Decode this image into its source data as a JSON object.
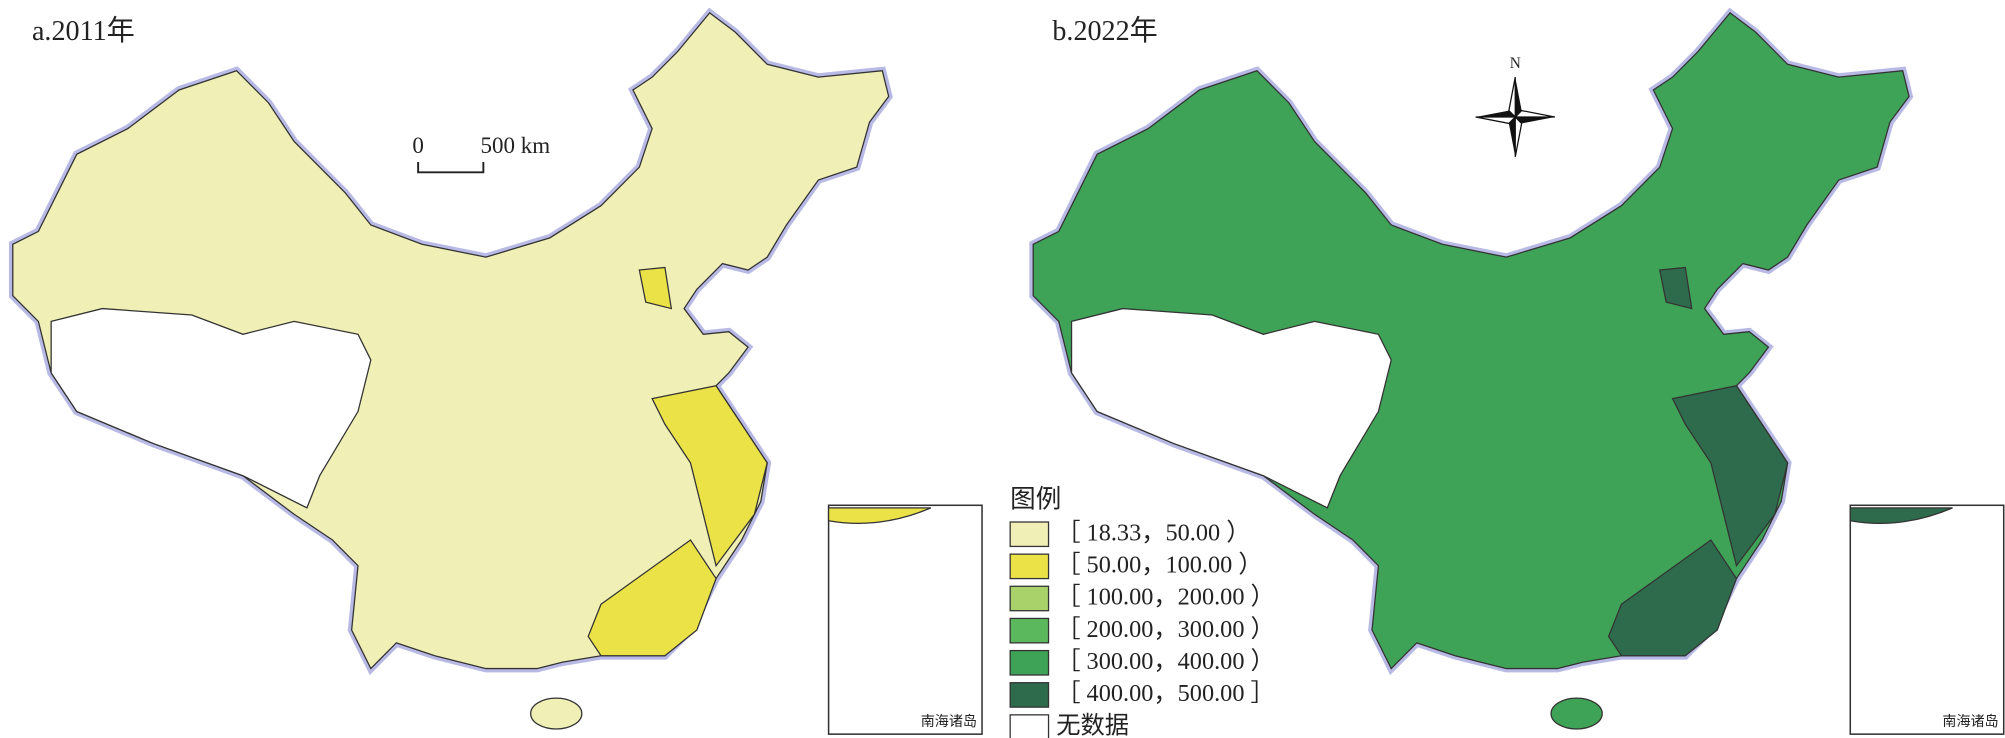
{
  "panels": [
    {
      "title": "a.2011年",
      "inset_label": "南海诸岛"
    },
    {
      "title": "b.2022年",
      "inset_label": "南海诸岛"
    }
  ],
  "scale_bar": {
    "labels": [
      "0",
      "500 km"
    ]
  },
  "north_arrow": {
    "label": "N"
  },
  "legend": {
    "title": "图例",
    "items": [
      {
        "label": "［ 18.33，50.00 ）",
        "color": "#f0efb5"
      },
      {
        "label": "［ 50.00，100.00 ）",
        "color": "#ebe247"
      },
      {
        "label": "［ 100.00，200.00 ）",
        "color": "#a9d36a"
      },
      {
        "label": "［ 200.00，300.00 ）",
        "color": "#5cb85c"
      },
      {
        "label": "［ 300.00，400.00 ）",
        "color": "#3fa357"
      },
      {
        "label": "［ 400.00，500.00 ］",
        "color": "#2e6b4d"
      },
      {
        "label": "无数据",
        "color": "#ffffff"
      }
    ]
  }
}
